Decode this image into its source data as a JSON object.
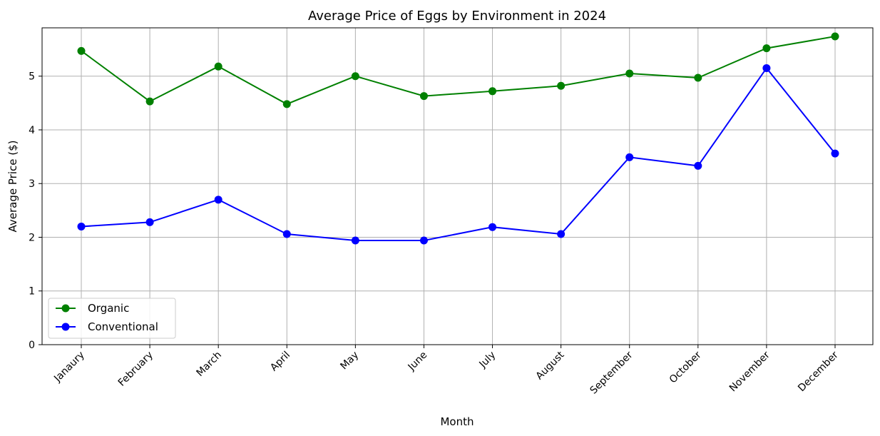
{
  "chart_data": {
    "type": "line",
    "title": "Average Price of Eggs by Environment in 2024",
    "xlabel": "Month",
    "ylabel": "Average Price ($)",
    "categories": [
      "Janaury",
      "February",
      "March",
      "April",
      "May",
      "June",
      "July",
      "August",
      "September",
      "October",
      "November",
      "December"
    ],
    "yticks": [
      0,
      1,
      2,
      3,
      4,
      5
    ],
    "ylim": [
      0,
      5.9
    ],
    "grid": true,
    "legend_position": "lower-left",
    "series": [
      {
        "name": "Organic",
        "color": "#008000",
        "marker": "circle",
        "values": [
          5.47,
          4.53,
          5.18,
          4.48,
          5.0,
          4.63,
          4.72,
          4.82,
          5.05,
          4.97,
          5.52,
          5.74
        ]
      },
      {
        "name": "Conventional",
        "color": "#0000ff",
        "marker": "circle",
        "values": [
          2.2,
          2.28,
          2.7,
          2.06,
          1.94,
          1.94,
          2.19,
          2.06,
          3.49,
          3.33,
          5.15,
          3.56
        ]
      }
    ]
  }
}
